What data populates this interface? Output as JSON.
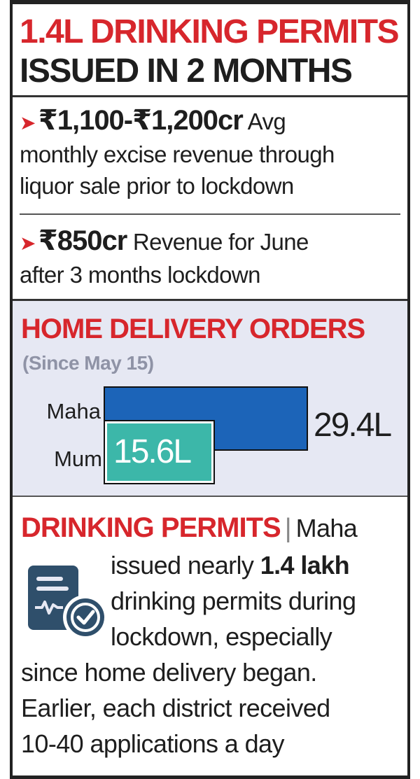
{
  "headline": {
    "line1": "1.4L DRINKING PERMITS",
    "line2": "ISSUED IN 2 MONTHS"
  },
  "stats": [
    {
      "value": "₹1,100-₹1,200cr",
      "desc_inline": "Avg",
      "desc_line2": "monthly excise revenue through",
      "desc_line3": "liquor sale prior to lockdown"
    },
    {
      "value": "₹850cr",
      "desc_inline": "Revenue for June",
      "desc_line2": "after 3 months lockdown"
    }
  ],
  "chart_data": {
    "type": "bar",
    "orientation": "horizontal",
    "title": "HOME DELIVERY ORDERS",
    "subtitle": "(Since May 15)",
    "categories": [
      "Maha",
      "Mum"
    ],
    "values": [
      29.4,
      15.6
    ],
    "value_labels": [
      "29.4L",
      "15.6L"
    ],
    "unit": "lakh",
    "colors": [
      "#1c64b8",
      "#3cb7a9"
    ],
    "grid": false,
    "legend": "none"
  },
  "permits": {
    "title": "DRINKING PERMITS",
    "divider": "|",
    "lead": "Maha",
    "line1_pre": "issued nearly ",
    "line1_bold": "1.4 lakh",
    "line2": "drinking permits during",
    "line3": "lockdown, especially",
    "line4": "since home delivery began.",
    "line5": "Earlier, each district received",
    "line6": "10-40 applications a day",
    "icon": "certificate-check-icon"
  }
}
